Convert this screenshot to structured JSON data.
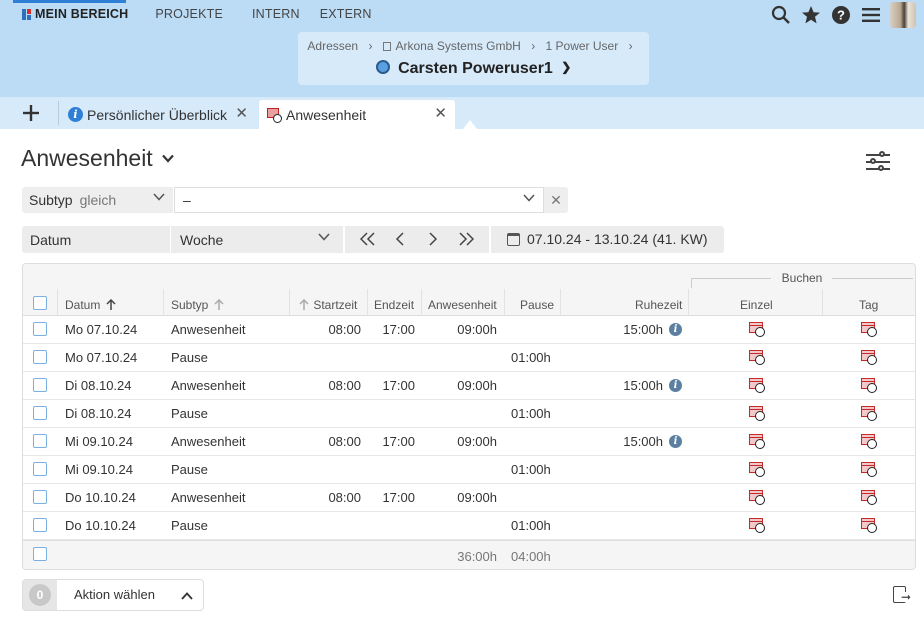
{
  "topnav": {
    "items": [
      "MEIN BEREICH",
      "PROJEKTE",
      "INTERN",
      "EXTERN"
    ]
  },
  "topicons": [
    "search-icon",
    "star-icon",
    "help-icon",
    "menu-icon",
    "user-avatar"
  ],
  "context": {
    "breadcrumbs": [
      "Adressen",
      "Arkona Systems GmbH",
      "1 Power User"
    ],
    "title": "Carsten Poweruser1"
  },
  "tabs": [
    {
      "label": "Persönlicher Überblick",
      "icon": "info-icon"
    },
    {
      "label": "Anwesenheit",
      "icon": "attendance-icon",
      "active": true
    }
  ],
  "page": {
    "title": "Anwesenheit"
  },
  "filter": {
    "field": "Subtyp",
    "operator": "gleich",
    "value": "–"
  },
  "period": {
    "field": "Datum",
    "mode": "Woche",
    "range": "07.10.24 - 13.10.24 (41. KW)"
  },
  "table": {
    "group_header": "Buchen",
    "columns": {
      "datum": "Datum",
      "subtyp": "Subtyp",
      "startzeit": "Startzeit",
      "endzeit": "Endzeit",
      "anwesenheit": "Anwesenheit",
      "pause": "Pause",
      "ruhezeit": "Ruhezeit",
      "einzel": "Einzel",
      "tag": "Tag"
    },
    "rows": [
      {
        "datum": "Mo 07.10.24",
        "subtyp": "Anwesenheit",
        "start": "08:00",
        "end": "17:00",
        "anwesenheit": "09:00h",
        "pause": "",
        "ruhezeit": "15:00h"
      },
      {
        "datum": "Mo 07.10.24",
        "subtyp": "Pause",
        "start": "",
        "end": "",
        "anwesenheit": "",
        "pause": "01:00h",
        "ruhezeit": ""
      },
      {
        "datum": "Di 08.10.24",
        "subtyp": "Anwesenheit",
        "start": "08:00",
        "end": "17:00",
        "anwesenheit": "09:00h",
        "pause": "",
        "ruhezeit": "15:00h"
      },
      {
        "datum": "Di 08.10.24",
        "subtyp": "Pause",
        "start": "",
        "end": "",
        "anwesenheit": "",
        "pause": "01:00h",
        "ruhezeit": ""
      },
      {
        "datum": "Mi 09.10.24",
        "subtyp": "Anwesenheit",
        "start": "08:00",
        "end": "17:00",
        "anwesenheit": "09:00h",
        "pause": "",
        "ruhezeit": "15:00h"
      },
      {
        "datum": "Mi 09.10.24",
        "subtyp": "Pause",
        "start": "",
        "end": "",
        "anwesenheit": "",
        "pause": "01:00h",
        "ruhezeit": ""
      },
      {
        "datum": "Do 10.10.24",
        "subtyp": "Anwesenheit",
        "start": "08:00",
        "end": "17:00",
        "anwesenheit": "09:00h",
        "pause": "",
        "ruhezeit": ""
      },
      {
        "datum": "Do 10.10.24",
        "subtyp": "Pause",
        "start": "",
        "end": "",
        "anwesenheit": "",
        "pause": "01:00h",
        "ruhezeit": ""
      }
    ],
    "totals": {
      "anwesenheit": "36:00h",
      "pause": "04:00h"
    }
  },
  "action": {
    "count": "0",
    "label": "Aktion wählen"
  },
  "colors": {
    "header_bg": "#bcdcf6",
    "tabstrip_bg": "#d7eafa",
    "accent": "#2f7fd6"
  }
}
